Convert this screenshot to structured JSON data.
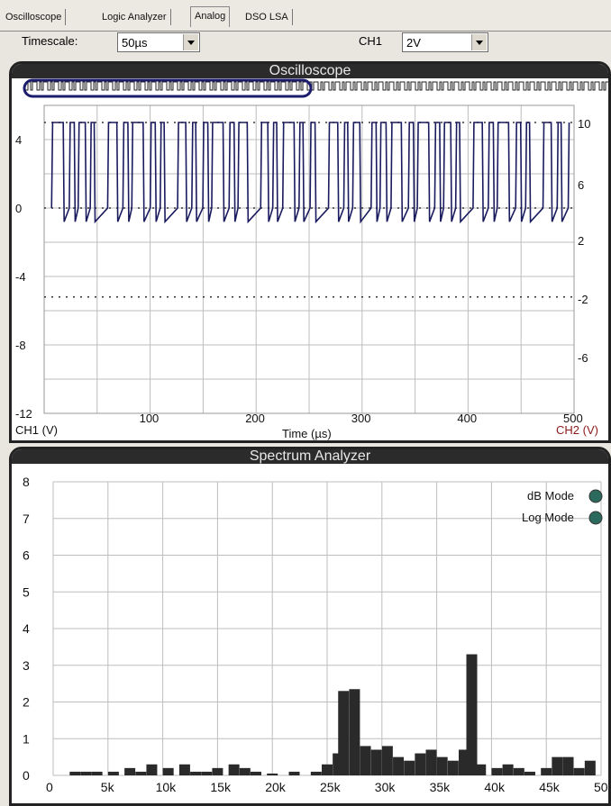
{
  "tabs": [
    {
      "label": "Oscilloscope",
      "active": false
    },
    {
      "label": "Logic Analyzer",
      "active": false
    },
    {
      "label": "Analog",
      "active": true
    },
    {
      "label": "DSO LSA",
      "active": false
    }
  ],
  "toolbar": {
    "timescale_label": "Timescale:",
    "timescale_value": "50µs",
    "ch1_label": "CH1",
    "ch1_value": "2V"
  },
  "oscilloscope": {
    "title": "Oscilloscope",
    "left_axis_label": "CH1 (V)",
    "right_axis_label": "CH2 (V)",
    "x_label": "Time (µs)",
    "left_ticks": [
      "4",
      "0",
      "-4",
      "-8",
      "-12"
    ],
    "right_ticks": [
      "10",
      "6",
      "2",
      "-2",
      "-6"
    ],
    "x_ticks": [
      "100",
      "200",
      "300",
      "400",
      "500"
    ],
    "ch1_color": "#1a1a5e",
    "trace_color": "#1a1a5e"
  },
  "spectrum": {
    "title": "Spectrum Analyzer",
    "db_mode_label": "dB Mode",
    "log_mode_label": "Log Mode",
    "bar_color": "#2a2a2a"
  },
  "chart_data": [
    {
      "type": "line",
      "title": "Oscilloscope",
      "xlabel": "Time (µs)",
      "ylabel": "CH1 (V)",
      "y2label": "CH2 (V)",
      "xlim": [
        0,
        500
      ],
      "ylim": [
        -12,
        6
      ],
      "series": [
        {
          "name": "CH1 (V)",
          "description_levels": {
            "high": 5.0,
            "low": 0.0
          }
        }
      ],
      "reference_lines": [
        5,
        0,
        -5.2
      ]
    },
    {
      "type": "bar",
      "title": "Spectrum Analyzer",
      "x_ticks": [
        "0",
        "5k",
        "10k",
        "15k",
        "20k",
        "25k",
        "30k",
        "35k",
        "40k",
        "45k",
        "50k"
      ],
      "ylim": [
        0,
        8
      ],
      "y_ticks": [
        "0",
        "1",
        "2",
        "3",
        "4",
        "5",
        "6",
        "7",
        "8"
      ],
      "x": [
        2000,
        3000,
        4000,
        5500,
        7000,
        8000,
        9000,
        10500,
        12000,
        13000,
        14000,
        15000,
        16500,
        17500,
        18500,
        20000,
        22000,
        24000,
        25000,
        26000,
        26500,
        27500,
        28500,
        29500,
        30500,
        31500,
        32500,
        33500,
        34500,
        35500,
        36500,
        37500,
        38200,
        39000,
        40500,
        41500,
        42500,
        43500,
        45000,
        46000,
        47000,
        48000,
        49000
      ],
      "values": [
        0.1,
        0.1,
        0.1,
        0.1,
        0.2,
        0.1,
        0.3,
        0.2,
        0.3,
        0.1,
        0.1,
        0.2,
        0.3,
        0.2,
        0.1,
        0.05,
        0.1,
        0.1,
        0.3,
        0.6,
        2.3,
        2.35,
        0.8,
        0.7,
        0.8,
        0.5,
        0.4,
        0.6,
        0.7,
        0.5,
        0.4,
        0.7,
        3.3,
        0.3,
        0.2,
        0.3,
        0.2,
        0.1,
        0.2,
        0.5,
        0.5,
        0.2,
        0.4
      ]
    }
  ]
}
